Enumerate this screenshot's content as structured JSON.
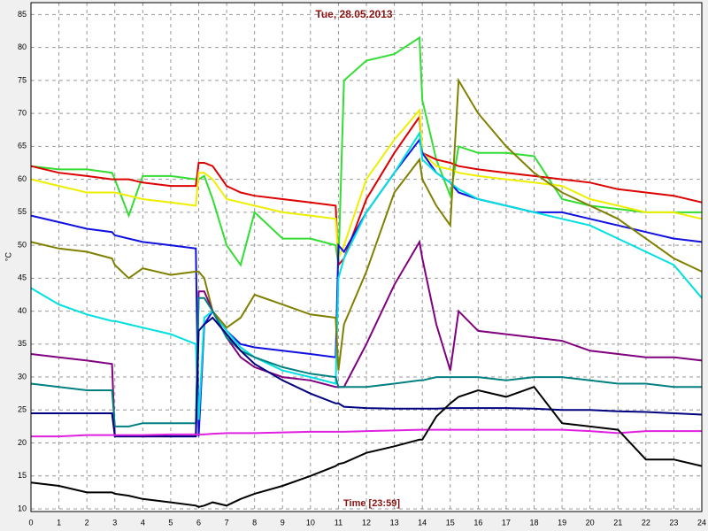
{
  "chart_data": {
    "type": "line",
    "title": "Tue, 28.05.2013",
    "xlabel": "Time [23:59]",
    "ylabel": "°C",
    "xlim": [
      0,
      24
    ],
    "ylim": [
      9.6,
      86.8
    ],
    "xticks": [
      0,
      1,
      2,
      3,
      4,
      5,
      6,
      7,
      8,
      9,
      10,
      11,
      12,
      13,
      14,
      15,
      16,
      17,
      18,
      19,
      20,
      21,
      22,
      23,
      24
    ],
    "yticks": [
      10,
      15,
      20,
      25,
      30,
      35,
      40,
      45,
      50,
      55,
      60,
      65,
      70,
      75,
      80,
      85
    ],
    "grid": true,
    "x": [
      0,
      1,
      2,
      2.9,
      3,
      3.5,
      4,
      5,
      5.9,
      6,
      6.2,
      6.5,
      7,
      7.5,
      8,
      9,
      10,
      10.9,
      11,
      11.2,
      12,
      13,
      13.9,
      14,
      14.5,
      15,
      15.3,
      16,
      17,
      18,
      19,
      20,
      21,
      22,
      23,
      24
    ],
    "series": [
      {
        "color": "#33dd33",
        "values": [
          62,
          61.5,
          61.5,
          61,
          60,
          54.5,
          60.5,
          60.5,
          60,
          60,
          60.5,
          57,
          50,
          47,
          55,
          51,
          51,
          50,
          47,
          75,
          78,
          79,
          81.5,
          72,
          63,
          57.5,
          65,
          64,
          64,
          63.5,
          57,
          56,
          55.5,
          55,
          55,
          55
        ]
      },
      {
        "color": "#dd0000",
        "values": [
          62,
          61,
          60.5,
          60,
          60,
          60,
          59.5,
          59,
          59,
          62.5,
          62.5,
          62,
          59,
          58,
          57.5,
          57,
          56.5,
          56,
          47,
          48,
          57,
          64,
          69.5,
          64,
          63,
          62.5,
          62,
          61.5,
          61,
          60.5,
          60,
          59.5,
          58.5,
          58,
          57.5,
          56.5
        ]
      },
      {
        "color": "#eeee00",
        "values": [
          60,
          59,
          58,
          58,
          58,
          57.5,
          57,
          56.5,
          56,
          61,
          61,
          60,
          57,
          56.5,
          56,
          55,
          54.5,
          54,
          48,
          50,
          60,
          66,
          70.5,
          64,
          62,
          61.5,
          61,
          60.5,
          60,
          59.5,
          59,
          57,
          56,
          55,
          55,
          54
        ]
      },
      {
        "color": "#1010e0",
        "values": [
          54.5,
          53.5,
          52.5,
          52,
          51.5,
          51,
          50.5,
          50,
          49.5,
          21,
          38,
          40,
          37,
          35,
          34.5,
          34,
          33.5,
          33,
          50,
          49,
          55,
          61,
          66,
          64,
          61,
          59.5,
          58,
          57,
          56,
          55,
          55,
          54,
          53,
          52,
          51,
          50.5
        ]
      },
      {
        "color": "#00e0e0",
        "values": [
          43.5,
          41,
          39.5,
          38.5,
          38.5,
          38,
          37.5,
          36.5,
          35,
          23.5,
          39,
          40,
          37,
          34.5,
          33,
          31,
          30,
          29,
          45,
          48,
          55,
          61,
          67,
          63,
          61,
          59.5,
          58.5,
          57,
          56,
          55,
          54,
          53,
          51,
          49,
          47,
          42
        ]
      },
      {
        "color": "#808000",
        "values": [
          50.5,
          49.5,
          49,
          48,
          47,
          45,
          46.5,
          45.5,
          46,
          46,
          45,
          40,
          37.5,
          39,
          42.5,
          41,
          39.5,
          39,
          31,
          38,
          46,
          58,
          63,
          60,
          56,
          53,
          75,
          70,
          65,
          61,
          58,
          56,
          54,
          51,
          48,
          46
        ]
      },
      {
        "color": "#800080",
        "values": [
          33.5,
          33,
          32.5,
          32,
          21,
          21,
          21,
          21,
          21,
          43,
          43,
          40,
          36,
          33,
          31.5,
          30,
          29.5,
          28.5,
          28.5,
          28.5,
          35,
          44,
          50.5,
          48,
          38,
          31,
          40,
          37,
          36.5,
          36,
          35.5,
          34,
          33.5,
          33,
          33,
          32.5
        ]
      },
      {
        "color": "#008080",
        "values": [
          29,
          28.5,
          28,
          28,
          22.5,
          22.5,
          23,
          23,
          23,
          42,
          42,
          40,
          36,
          34,
          33,
          31.5,
          30.5,
          30,
          28.5,
          28.5,
          28.5,
          29,
          29.5,
          29.5,
          30,
          30,
          30,
          30,
          29.5,
          30,
          30,
          29.5,
          29,
          29,
          28.5,
          28.5
        ]
      },
      {
        "color": "#000080",
        "values": [
          24.5,
          24.5,
          24.5,
          24.5,
          21,
          21,
          21,
          21,
          21,
          37,
          38,
          39,
          36.5,
          34,
          32,
          29.5,
          27.5,
          26,
          26,
          25.5,
          25.3,
          25.2,
          25.2,
          25.2,
          25.2,
          25.3,
          25.3,
          25.3,
          25.3,
          25.2,
          25,
          25,
          24.8,
          24.7,
          24.5,
          24.3
        ]
      },
      {
        "color": "#e020e0",
        "values": [
          21,
          21,
          21.2,
          21.2,
          21.2,
          21.2,
          21.2,
          21.3,
          21.3,
          21.3,
          21.3,
          21.4,
          21.5,
          21.5,
          21.5,
          21.6,
          21.7,
          21.7,
          21.7,
          21.7,
          21.8,
          21.9,
          22,
          22,
          22,
          22,
          22,
          22,
          22,
          22,
          22,
          21.8,
          21.5,
          21.8,
          21.8,
          21.8
        ]
      },
      {
        "color": "#000000",
        "values": [
          14,
          13.5,
          12.5,
          12.5,
          12.3,
          12,
          11.5,
          11,
          10.5,
          10.3,
          10.5,
          11,
          10.5,
          11.5,
          12.3,
          13.5,
          15,
          16.5,
          16.8,
          17,
          18.5,
          19.5,
          20.5,
          20.5,
          24,
          26,
          27,
          28,
          27,
          28.5,
          23,
          22.5,
          22,
          17.5,
          17.5,
          16.5
        ]
      }
    ]
  }
}
